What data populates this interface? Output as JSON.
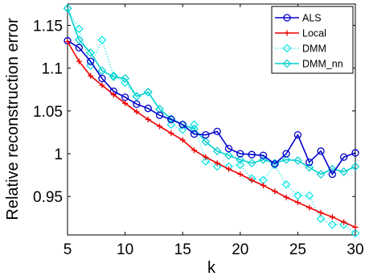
{
  "chart_data": {
    "type": "line",
    "xlabel": "k",
    "ylabel": "Relative reconstruction error",
    "xlim": [
      5,
      30
    ],
    "ylim": [
      0.905,
      1.175
    ],
    "xticks": [
      5,
      10,
      15,
      20,
      25,
      30
    ],
    "yticks": [
      0.95,
      1,
      1.05,
      1.1,
      1.15
    ],
    "ytick_labels": [
      "0.95",
      "1",
      "1.05",
      "1.1",
      "1.15"
    ],
    "grid": false,
    "legend_position": "top-right",
    "x": [
      5,
      6,
      7,
      8,
      9,
      10,
      11,
      12,
      13,
      14,
      15,
      16,
      17,
      18,
      19,
      20,
      21,
      22,
      23,
      24,
      25,
      26,
      27,
      28,
      29,
      30
    ],
    "series": [
      {
        "name": "ALS",
        "color": "#0000cc",
        "line": "solid",
        "marker": "circle",
        "values": [
          1.132,
          1.124,
          1.108,
          1.088,
          1.073,
          1.066,
          1.058,
          1.053,
          1.045,
          1.04,
          1.034,
          1.023,
          1.022,
          1.026,
          1.006,
          1.0,
          0.999,
          0.998,
          0.988,
          1.0,
          1.022,
          0.99,
          1.003,
          0.976,
          0.996,
          1.001
        ]
      },
      {
        "name": "Local",
        "color": "#ee0000",
        "line": "solid",
        "marker": "plus",
        "values": [
          1.131,
          1.108,
          1.091,
          1.08,
          1.069,
          1.059,
          1.049,
          1.04,
          1.032,
          1.024,
          1.016,
          1.004,
          0.996,
          0.989,
          0.982,
          0.976,
          0.969,
          0.963,
          0.956,
          0.949,
          0.943,
          0.937,
          0.931,
          0.926,
          0.92,
          0.914
        ]
      },
      {
        "name": "DMM",
        "color": "#00e5e5",
        "line": "dotted",
        "marker": "diamond",
        "values": [
          1.17,
          1.146,
          1.103,
          1.133,
          1.091,
          1.083,
          1.067,
          1.072,
          1.052,
          1.034,
          1.028,
          1.034,
          0.991,
          0.985,
          0.985,
          0.987,
          0.971,
          0.969,
          0.987,
          0.964,
          0.951,
          0.951,
          0.924,
          0.917,
          0.917,
          0.907
        ]
      },
      {
        "name": "DMM_nn",
        "color": "#00d0d0",
        "line": "solid",
        "marker": "diamond",
        "values": [
          1.17,
          1.133,
          1.118,
          1.097,
          1.09,
          1.088,
          1.067,
          1.072,
          1.052,
          1.041,
          1.034,
          1.029,
          1.014,
          1.003,
          0.998,
          0.993,
          0.989,
          0.993,
          0.989,
          0.993,
          0.992,
          0.984,
          0.976,
          0.982,
          0.979,
          0.985
        ]
      }
    ]
  }
}
